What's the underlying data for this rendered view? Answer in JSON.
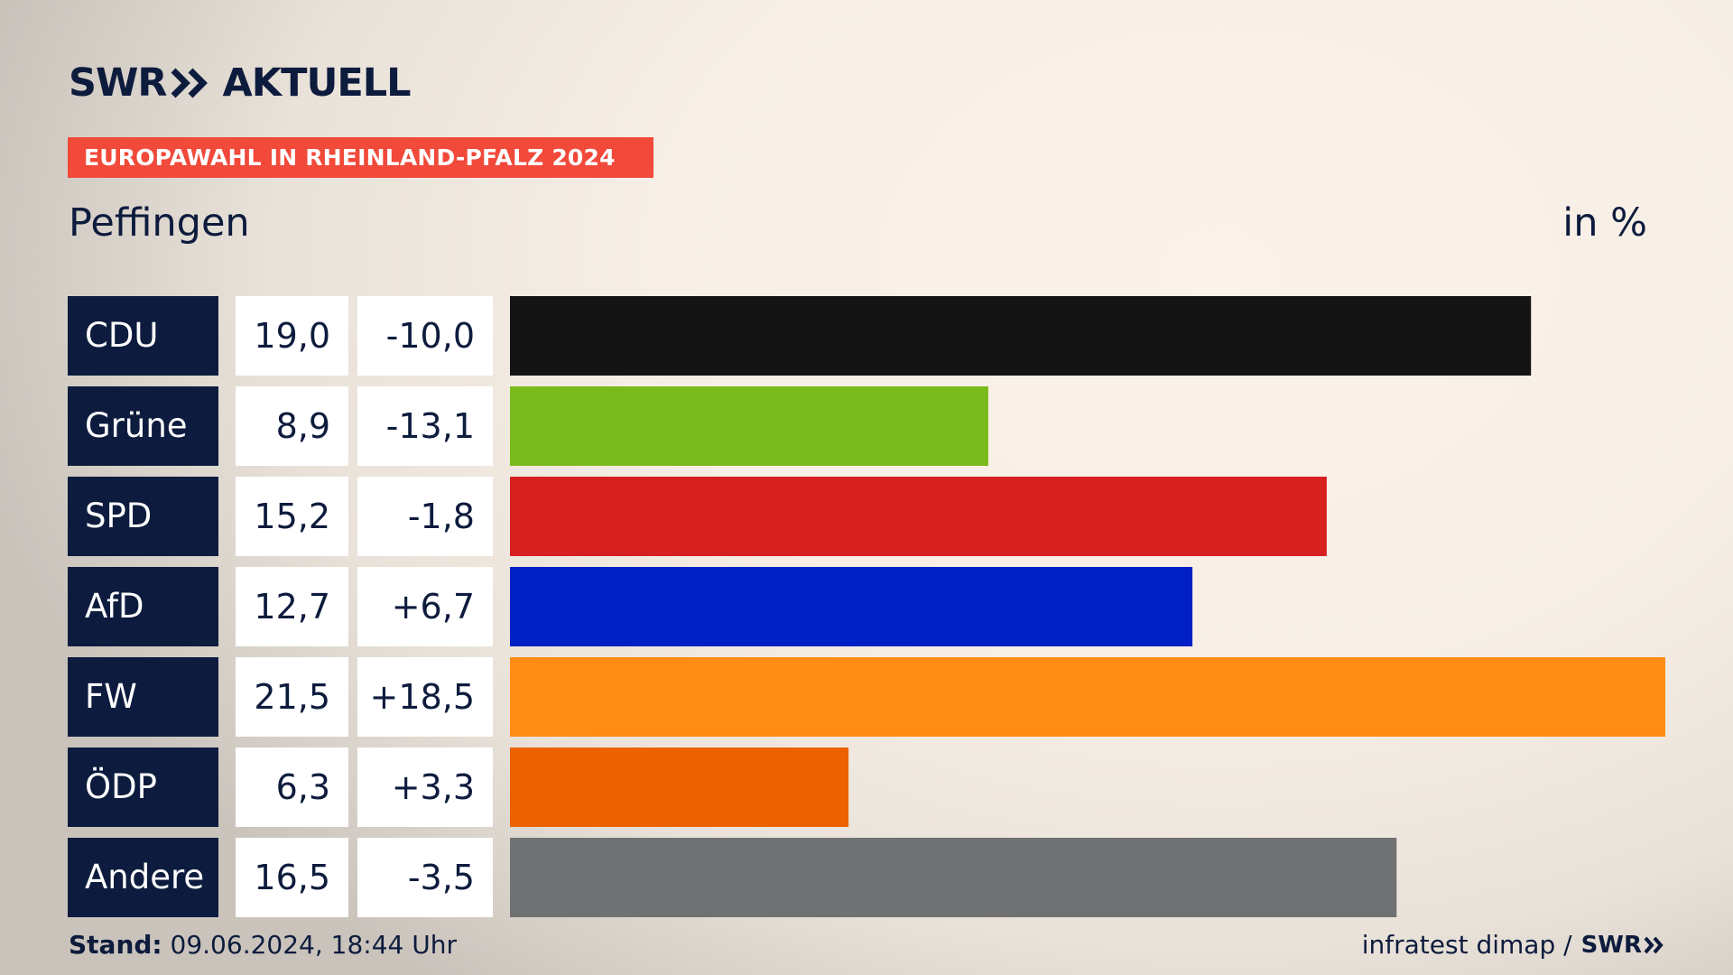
{
  "brand": {
    "logo_left": "SWR",
    "logo_right": "AKTUELL",
    "logo_icon": "double-chevron-icon"
  },
  "banner": "EUROPAWAHL IN RHEINLAND-PFALZ 2024",
  "region": "Peffingen",
  "unit": "in %",
  "chart_data": {
    "type": "bar",
    "orientation": "horizontal",
    "title": "Peffingen",
    "unit": "in %",
    "categories": [
      "CDU",
      "Grüne",
      "SPD",
      "AfD",
      "FW",
      "ÖDP",
      "Andere"
    ],
    "values": [
      19.0,
      8.9,
      15.2,
      12.7,
      21.5,
      6.3,
      16.5
    ],
    "value_labels": [
      "19,0",
      "8,9",
      "15,2",
      "12,7",
      "21,5",
      "6,3",
      "16,5"
    ],
    "diffs": [
      -10.0,
      -13.1,
      -1.8,
      6.7,
      18.5,
      3.3,
      -3.5
    ],
    "diff_labels": [
      "-10,0",
      "-13,1",
      "-1,8",
      "+6,7",
      "+18,5",
      "+3,3",
      "-3,5"
    ],
    "colors": [
      "#141414",
      "#7aba1c",
      "#d61f1f",
      "#0020c6",
      "#ff8c14",
      "#ec6100",
      "#707172"
    ],
    "xlim": [
      0,
      21.5
    ],
    "grid": false,
    "legend": "none"
  },
  "footer": {
    "stand_label": "Stand:",
    "stand_value": "09.06.2024, 18:44 Uhr",
    "source": "infratest dimap /",
    "source_logo": "SWR"
  }
}
